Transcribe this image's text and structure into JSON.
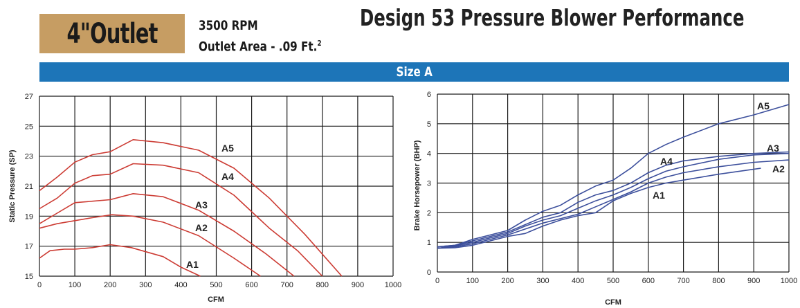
{
  "header": {
    "outlet_label": "4\"Outlet",
    "rpm": "3500 RPM",
    "outlet_area": "Outlet Area - .09 Ft.",
    "outlet_area_exp": "2",
    "title": "Design 53 Pressure Blower Performance",
    "size_label": "Size A"
  },
  "colors": {
    "badge": "#c69d63",
    "band": "#1d75b8",
    "pressure_curves": "#cc3b33",
    "horsepower_curves": "#3c4f9c"
  },
  "chart_data": [
    {
      "type": "line",
      "xlabel": "CFM",
      "ylabel": "Static Pressure (SP)",
      "xlim": [
        0,
        1000
      ],
      "ylim": [
        15,
        27
      ],
      "xticks": [
        "0",
        "100",
        "200",
        "300",
        "400",
        "500",
        "600",
        "700",
        "800",
        "900",
        "1000"
      ],
      "yticks": [
        "15",
        "17",
        "19",
        "21",
        "23",
        "25",
        "27"
      ],
      "grid": true,
      "series": [
        {
          "name": "A5",
          "x": [
            0,
            50,
            100,
            150,
            200,
            265,
            350,
            450,
            550,
            650,
            750,
            855
          ],
          "y": [
            20.7,
            21.6,
            22.6,
            23.1,
            23.3,
            24.1,
            23.9,
            23.4,
            22.2,
            20.2,
            17.8,
            15.0
          ]
        },
        {
          "name": "A4",
          "x": [
            0,
            50,
            100,
            150,
            200,
            265,
            350,
            450,
            550,
            650,
            730,
            800
          ],
          "y": [
            19.5,
            20.2,
            21.2,
            21.7,
            21.8,
            22.5,
            22.4,
            21.9,
            20.4,
            18.2,
            16.7,
            15.0
          ]
        },
        {
          "name": "A3",
          "x": [
            0,
            50,
            100,
            150,
            200,
            265,
            350,
            450,
            550,
            640,
            720
          ],
          "y": [
            18.5,
            19.2,
            19.9,
            20.0,
            20.1,
            20.5,
            20.3,
            19.4,
            18.0,
            16.5,
            15.0
          ]
        },
        {
          "name": "A2",
          "x": [
            0,
            50,
            100,
            150,
            205,
            265,
            350,
            450,
            550,
            625
          ],
          "y": [
            18.2,
            18.5,
            18.7,
            18.9,
            19.1,
            19.0,
            18.6,
            17.7,
            16.2,
            15.0
          ]
        },
        {
          "name": "A1",
          "x": [
            0,
            30,
            70,
            100,
            150,
            200,
            260,
            350,
            400,
            455
          ],
          "y": [
            16.2,
            16.7,
            16.8,
            16.8,
            16.9,
            17.1,
            16.9,
            16.3,
            15.6,
            15.0
          ]
        }
      ],
      "annotations": [
        "A5",
        "A4",
        "A3",
        "A2",
        "A1"
      ]
    },
    {
      "type": "line",
      "xlabel": "CFM",
      "ylabel": "Brake Horsepower (BHP)",
      "xlim": [
        0,
        1000
      ],
      "ylim": [
        0,
        6
      ],
      "xticks": [
        "0",
        "100",
        "200",
        "300",
        "400",
        "500",
        "600",
        "700",
        "800",
        "900",
        "1000"
      ],
      "yticks": [
        "0",
        "1",
        "2",
        "3",
        "4",
        "5",
        "6"
      ],
      "grid": true,
      "series": [
        {
          "name": "A5",
          "x": [
            0,
            50,
            100,
            150,
            200,
            250,
            300,
            350,
            400,
            450,
            500,
            550,
            600,
            650,
            700,
            800,
            900,
            1000
          ],
          "y": [
            0.85,
            0.9,
            1.1,
            1.25,
            1.4,
            1.75,
            2.05,
            2.25,
            2.6,
            2.9,
            3.1,
            3.5,
            4.0,
            4.3,
            4.55,
            5.0,
            5.3,
            5.65
          ]
        },
        {
          "name": "A4",
          "x": [
            0,
            50,
            100,
            150,
            200,
            250,
            300,
            350,
            400,
            450,
            500,
            550,
            600,
            650,
            700,
            800,
            900,
            1000
          ],
          "y": [
            0.85,
            0.9,
            1.05,
            1.2,
            1.35,
            1.6,
            1.85,
            2.0,
            2.35,
            2.6,
            2.75,
            3.0,
            3.35,
            3.6,
            3.75,
            3.9,
            4.0,
            4.05
          ]
        },
        {
          "name": "A3",
          "x": [
            0,
            50,
            100,
            150,
            200,
            250,
            300,
            350,
            400,
            450,
            500,
            550,
            600,
            650,
            700,
            800,
            900,
            1000
          ],
          "y": [
            0.8,
            0.88,
            1.0,
            1.15,
            1.3,
            1.55,
            1.75,
            1.9,
            2.15,
            2.4,
            2.6,
            2.85,
            3.15,
            3.4,
            3.55,
            3.8,
            3.95,
            4.0
          ]
        },
        {
          "name": "A2",
          "x": [
            0,
            50,
            100,
            150,
            200,
            250,
            300,
            350,
            400,
            450,
            500,
            550,
            600,
            650,
            700,
            800,
            900,
            1000
          ],
          "y": [
            0.8,
            0.85,
            0.95,
            1.1,
            1.25,
            1.45,
            1.65,
            1.8,
            1.95,
            2.2,
            2.45,
            2.7,
            3.0,
            3.2,
            3.35,
            3.55,
            3.7,
            3.78
          ]
        },
        {
          "name": "A1",
          "x": [
            0,
            50,
            100,
            150,
            200,
            250,
            300,
            350,
            400,
            450,
            500,
            550,
            600,
            650,
            700,
            800,
            920
          ],
          "y": [
            0.8,
            0.82,
            0.9,
            1.05,
            1.2,
            1.3,
            1.55,
            1.75,
            1.9,
            2.0,
            2.4,
            2.65,
            2.85,
            3.0,
            3.1,
            3.3,
            3.5
          ]
        }
      ],
      "annotations": [
        "A5",
        "A4",
        "A3",
        "A2",
        "A1"
      ]
    }
  ]
}
